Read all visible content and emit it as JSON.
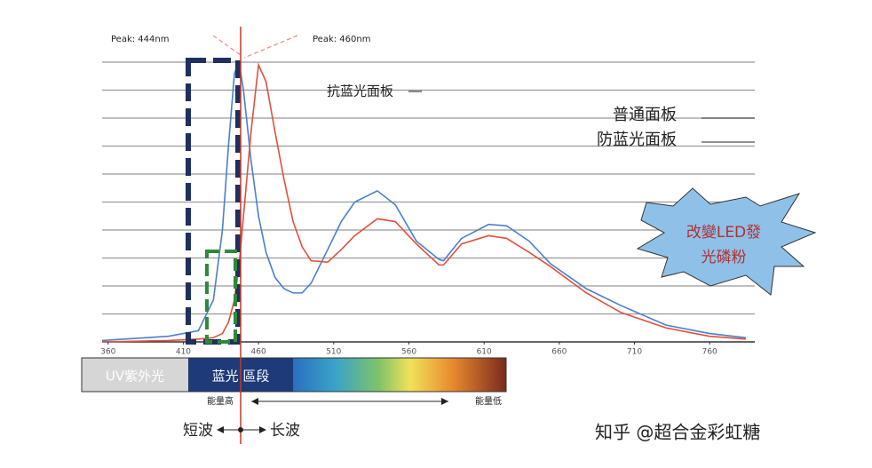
{
  "chart_data": {
    "type": "line",
    "x": [
      356,
      400,
      420,
      430,
      436,
      440,
      444,
      447,
      450,
      455,
      460,
      465,
      471,
      477,
      483,
      489,
      495,
      506,
      515,
      524,
      539,
      551,
      565,
      580,
      583,
      595,
      613,
      625,
      640,
      654,
      678,
      701,
      731,
      760,
      784
    ],
    "series": [
      {
        "color": "#4a7fd0",
        "values": [
          0.05,
          0.2,
          0.4,
          1.5,
          4,
          7,
          9.6,
          10,
          9,
          6.5,
          4.5,
          3.2,
          2.3,
          1.9,
          1.75,
          1.75,
          2.1,
          3.3,
          4.3,
          5.0,
          5.4,
          4.9,
          3.6,
          2.95,
          2.9,
          3.7,
          4.2,
          4.15,
          3.6,
          2.8,
          1.9,
          1.3,
          0.6,
          0.3,
          0.15
        ]
      },
      {
        "color": "#e0503c",
        "values": [
          0,
          0.05,
          0.1,
          0.15,
          0.3,
          0.7,
          1.5,
          2.7,
          4.5,
          7.5,
          9.9,
          9.3,
          7.5,
          5.8,
          4.3,
          3.4,
          2.9,
          2.85,
          3.3,
          3.8,
          4.4,
          4.3,
          3.5,
          2.75,
          2.75,
          3.5,
          3.8,
          3.7,
          3.2,
          2.7,
          1.75,
          1.05,
          0.5,
          0.2,
          0.1
        ]
      }
    ],
    "xlim": [
      356,
      790
    ],
    "xticks": [
      360,
      410,
      460,
      510,
      560,
      610,
      660,
      710,
      760
    ],
    "ylim": [
      0,
      10
    ],
    "yticks": [
      1,
      2,
      3,
      4,
      5,
      6,
      7,
      8,
      9,
      10
    ],
    "grid": true,
    "annotations": [
      "Peak: 444nm",
      "Peak: 460nm",
      "抗蓝光面板",
      "普通面板",
      "防蓝光面板",
      "改變LED發",
      "光磷粉"
    ],
    "band_labels": [
      "UV紫外光",
      "蓝光 區段"
    ],
    "energy_labels": [
      "能量高",
      "能量低"
    ],
    "wave_labels": [
      "短波",
      "长波"
    ],
    "watermark": "知乎 @超合金彩虹糖"
  }
}
